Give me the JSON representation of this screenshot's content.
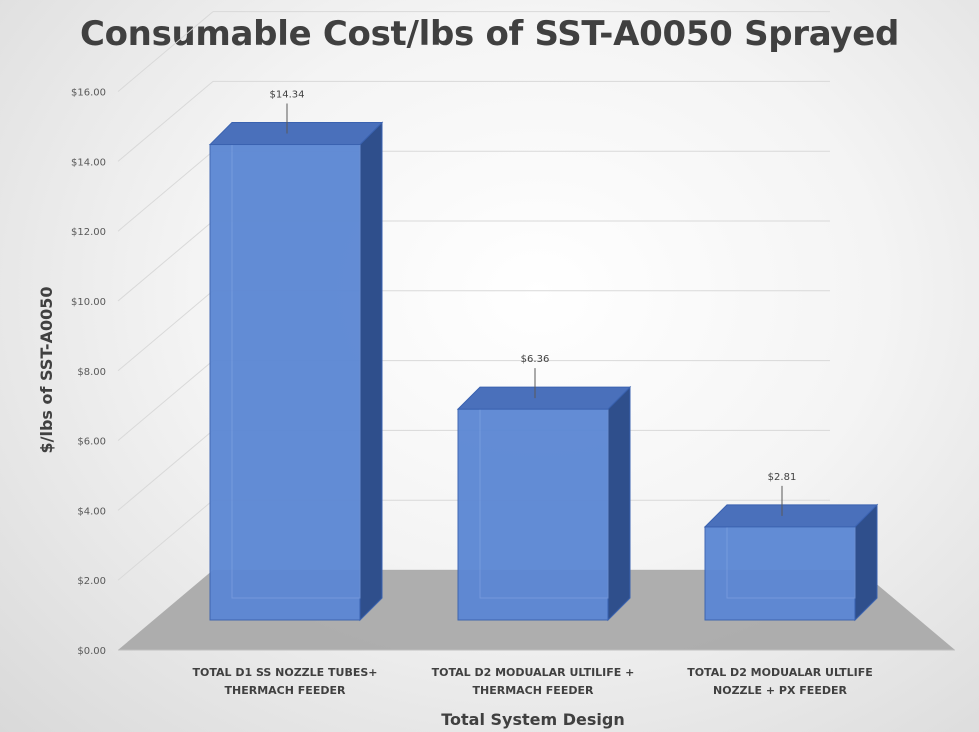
{
  "chart_data": {
    "type": "bar",
    "title": "Consumable Cost/lbs of SST-A0050 Sprayed",
    "xlabel": "Total System Design",
    "ylabel": "$/lbs of SST-A0050",
    "categories": [
      [
        "TOTAL D1 SS NOZZLE TUBES+",
        "THERMACH FEEDER"
      ],
      [
        "TOTAL D2 MODUALAR ULTILIFE +",
        "THERMACH FEEDER"
      ],
      [
        "TOTAL D2 MODUALAR ULTLIFE",
        "NOZZLE + PX FEEDER"
      ]
    ],
    "values": [
      14.34,
      6.36,
      2.81
    ],
    "data_labels": [
      "$14.34",
      "$6.36",
      "$2.81"
    ],
    "yticks": [
      0,
      2,
      4,
      6,
      8,
      10,
      12,
      14,
      16
    ],
    "ytick_labels": [
      "$0.00",
      "$2.00",
      "$4.00",
      "$6.00",
      "$8.00",
      "$10.00",
      "$12.00",
      "$14.00",
      "$16.00"
    ],
    "ylim": [
      0,
      16
    ],
    "grid": true,
    "legend": "none",
    "style": "3d-column",
    "colors": {
      "bar_front": "#5b87d4",
      "bar_top": "#4a70bb",
      "bar_side": "#2f4f8c",
      "bar_edge": "#3a62b0",
      "floor": "#a6a6a6",
      "gridline": "#d9d9d9",
      "text": "#404040"
    }
  }
}
